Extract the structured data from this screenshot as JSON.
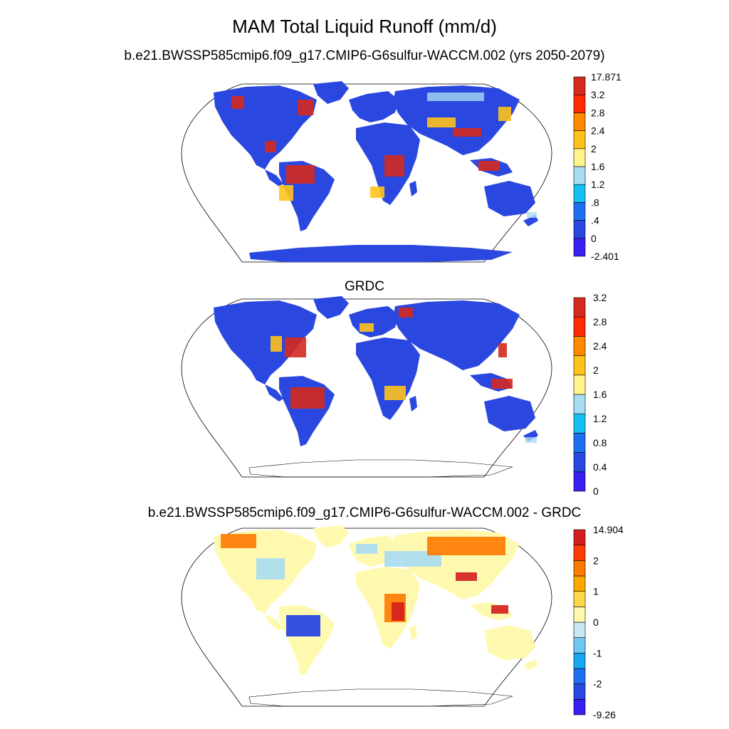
{
  "figure": {
    "title": "MAM Total Liquid Runoff (mm/d)"
  },
  "panels": [
    {
      "id": "model",
      "subtitle": "b.e21.BWSSP585cmip6.f09_g17.CMIP6-G6sulfur-WACCM.002 (yrs 2050-2079)",
      "colorbar": {
        "colors": [
          "#3a1ef2",
          "#2a47e0",
          "#1f6ff2",
          "#17bff2",
          "#a8dcf2",
          "#fff48a",
          "#ffc31c",
          "#ff8a00",
          "#ff2a00",
          "#d42a1e"
        ],
        "labels": [
          "-2.401",
          "0",
          ".4",
          ".8",
          "1.2",
          "1.6",
          "2",
          "2.4",
          "2.8",
          "3.2",
          "17.871"
        ]
      }
    },
    {
      "id": "grdc",
      "subtitle": "GRDC",
      "colorbar": {
        "colors": [
          "#3a1ef2",
          "#2a47e0",
          "#1f6ff2",
          "#17bff2",
          "#a8dcf2",
          "#fff48a",
          "#ffc31c",
          "#ff8a00",
          "#ff2a00",
          "#d42a1e"
        ],
        "labels": [
          "0",
          "0.4",
          "0.8",
          "1.2",
          "1.6",
          "2",
          "2.4",
          "2.8",
          "3.2"
        ]
      }
    },
    {
      "id": "difference",
      "subtitle": "b.e21.BWSSP585cmip6.f09_g17.CMIP6-G6sulfur-WACCM.002 - GRDC",
      "colorbar": {
        "colors": [
          "#3a1ef2",
          "#2a47e0",
          "#1f6ff2",
          "#17a8f2",
          "#6fc6f2",
          "#c8e6f2",
          "#fff9b0",
          "#ffd84a",
          "#ffa800",
          "#ff7a00",
          "#ff3a00",
          "#d41e1e"
        ],
        "labels": [
          "-9.26",
          "-2",
          "-1",
          "0",
          "1",
          "2",
          "14.904"
        ]
      }
    }
  ]
}
